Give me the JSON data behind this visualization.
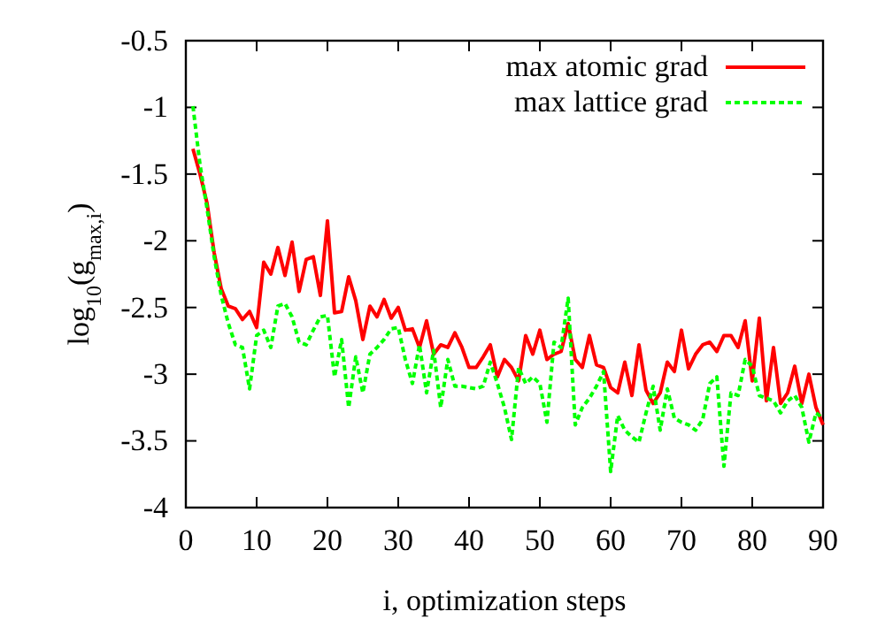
{
  "chart_data": {
    "type": "line",
    "xlabel": "i, optimization steps",
    "ylabel": "log$_{10}$(g$_{max,i}$)",
    "x": [
      1,
      2,
      3,
      4,
      5,
      6,
      7,
      8,
      9,
      10,
      11,
      12,
      13,
      14,
      15,
      16,
      17,
      18,
      19,
      20,
      21,
      22,
      23,
      24,
      25,
      26,
      27,
      28,
      29,
      30,
      31,
      32,
      33,
      34,
      35,
      36,
      37,
      38,
      39,
      40,
      41,
      42,
      43,
      44,
      45,
      46,
      47,
      48,
      49,
      50,
      51,
      52,
      53,
      54,
      55,
      56,
      57,
      58,
      59,
      60,
      61,
      62,
      63,
      64,
      65,
      66,
      67,
      68,
      69,
      70,
      71,
      72,
      73,
      74,
      75,
      76,
      77,
      78,
      79,
      80,
      81,
      82,
      83,
      84,
      85,
      86,
      87,
      88,
      89,
      90
    ],
    "series": [
      {
        "name": "max atomic grad",
        "color": "#ff0000",
        "line_style": "solid",
        "values": [
          -1.31,
          -1.5,
          -1.72,
          -2.09,
          -2.36,
          -2.49,
          -2.51,
          -2.59,
          -2.53,
          -2.65,
          -2.16,
          -2.25,
          -2.05,
          -2.26,
          -2.01,
          -2.38,
          -2.14,
          -2.12,
          -2.41,
          -1.85,
          -2.54,
          -2.53,
          -2.27,
          -2.45,
          -2.74,
          -2.49,
          -2.57,
          -2.44,
          -2.58,
          -2.5,
          -2.67,
          -2.66,
          -2.8,
          -2.6,
          -2.85,
          -2.78,
          -2.8,
          -2.69,
          -2.8,
          -2.95,
          -2.95,
          -2.87,
          -2.78,
          -3.02,
          -2.89,
          -2.95,
          -3.05,
          -2.71,
          -2.85,
          -2.67,
          -2.89,
          -2.85,
          -2.83,
          -2.62,
          -2.89,
          -2.95,
          -2.71,
          -2.93,
          -2.95,
          -3.1,
          -3.14,
          -2.91,
          -3.16,
          -2.78,
          -3.12,
          -3.22,
          -3.14,
          -2.91,
          -2.98,
          -2.67,
          -2.96,
          -2.85,
          -2.78,
          -2.76,
          -2.83,
          -2.71,
          -2.71,
          -2.8,
          -2.6,
          -3.05,
          -2.58,
          -3.2,
          -2.8,
          -3.22,
          -3.14,
          -2.94,
          -3.22,
          -3.0,
          -3.25,
          -3.38
        ]
      },
      {
        "name": "max lattice grad",
        "color": "#00ff00",
        "line_style": "dotted",
        "values": [
          -0.99,
          -1.43,
          -1.76,
          -2.12,
          -2.41,
          -2.62,
          -2.78,
          -2.8,
          -3.11,
          -2.71,
          -2.67,
          -2.8,
          -2.49,
          -2.47,
          -2.57,
          -2.76,
          -2.78,
          -2.67,
          -2.57,
          -2.56,
          -3.02,
          -2.74,
          -3.25,
          -2.87,
          -3.14,
          -2.85,
          -2.8,
          -2.74,
          -2.66,
          -2.65,
          -2.89,
          -3.07,
          -2.78,
          -3.14,
          -2.82,
          -3.25,
          -2.89,
          -3.09,
          -3.09,
          -3.1,
          -3.11,
          -3.09,
          -2.91,
          -3.07,
          -3.25,
          -3.49,
          -2.95,
          -3.07,
          -3.02,
          -3.07,
          -3.36,
          -2.76,
          -2.8,
          -2.43,
          -3.38,
          -3.25,
          -3.18,
          -3.09,
          -2.98,
          -3.73,
          -3.31,
          -3.42,
          -3.47,
          -3.51,
          -3.29,
          -3.09,
          -3.42,
          -3.11,
          -3.33,
          -3.36,
          -3.38,
          -3.42,
          -3.34,
          -3.07,
          -3.02,
          -3.69,
          -3.14,
          -3.16,
          -2.89,
          -2.94,
          -3.16,
          -3.18,
          -3.2,
          -3.29,
          -3.2,
          -3.16,
          -3.25,
          -3.51,
          -3.29,
          -3.33
        ]
      }
    ],
    "xlim": [
      0,
      90
    ],
    "xticks": [
      0,
      10,
      20,
      30,
      40,
      50,
      60,
      70,
      80,
      90
    ],
    "ylim": [
      -4,
      -0.5
    ],
    "yticks": [
      -4,
      -3.5,
      -3,
      -2.5,
      -2,
      -1.5,
      -1,
      -0.5
    ],
    "grid": false,
    "legend": "top right"
  }
}
